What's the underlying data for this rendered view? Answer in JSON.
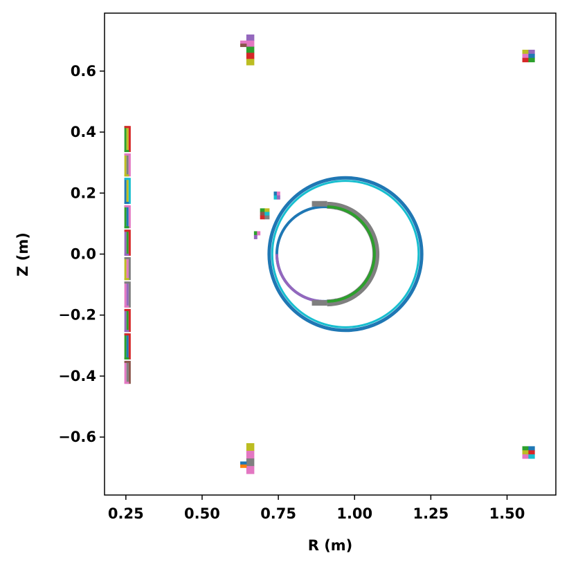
{
  "chart_data": {
    "type": "scatter",
    "title": "",
    "xlabel": "R (m)",
    "ylabel": "Z (m)",
    "xlim": [
      0.18,
      1.66
    ],
    "ylim": [
      -0.79,
      0.79
    ],
    "xticks": [
      0.25,
      0.5,
      0.75,
      1.0,
      1.25,
      1.5
    ],
    "xtick_labels": [
      "0.25",
      "0.50",
      "0.75",
      "1.00",
      "1.25",
      "1.50"
    ],
    "yticks": [
      -0.6,
      -0.4,
      -0.2,
      0.0,
      0.2,
      0.4,
      0.6
    ],
    "ytick_labels": [
      "−0.6",
      "−0.4",
      "−0.2",
      "0.0",
      "0.2",
      "0.4",
      "0.6"
    ],
    "grid": false,
    "legend": "none",
    "palette": [
      "#1f77b4",
      "#ff7f0e",
      "#2ca02c",
      "#d62728",
      "#9467bd",
      "#8c564b",
      "#e377c2",
      "#7f7f7f",
      "#bcbd22",
      "#17becf"
    ],
    "central_solenoid": [
      {
        "z_min": 0.33,
        "z_max": 0.42,
        "colors": [
          "#2ca02c",
          "#bcbd22",
          "#d62728"
        ]
      },
      {
        "z_min": 0.25,
        "z_max": 0.33,
        "colors": [
          "#bcbd22",
          "#7f7f7f",
          "#e377c2"
        ]
      },
      {
        "z_min": 0.16,
        "z_max": 0.25,
        "colors": [
          "#1f77b4",
          "#bcbd22",
          "#17becf"
        ]
      },
      {
        "z_min": 0.08,
        "z_max": 0.16,
        "colors": [
          "#2ca02c",
          "#1f77b4",
          "#e377c2"
        ]
      },
      {
        "z_min": -0.01,
        "z_max": 0.08,
        "colors": [
          "#9467bd",
          "#2ca02c",
          "#d62728"
        ]
      },
      {
        "z_min": -0.09,
        "z_max": -0.01,
        "colors": [
          "#bcbd22",
          "#e377c2",
          "#7f7f7f"
        ]
      },
      {
        "z_min": -0.18,
        "z_max": -0.09,
        "colors": [
          "#e377c2",
          "#9467bd",
          "#7f7f7f"
        ]
      },
      {
        "z_min": -0.26,
        "z_max": -0.18,
        "colors": [
          "#9467bd",
          "#2ca02c",
          "#d62728"
        ]
      },
      {
        "z_min": -0.35,
        "z_max": -0.26,
        "colors": [
          "#2ca02c",
          "#1f77b4",
          "#d62728"
        ]
      },
      {
        "z_min": -0.43,
        "z_max": -0.35,
        "colors": [
          "#e377c2",
          "#7f7f7f",
          "#8c564b"
        ]
      }
    ],
    "coils": [
      {
        "r_min": 0.645,
        "r_max": 0.67,
        "z_min": 0.62,
        "z_max": 0.72,
        "colors": [
          "#9467bd",
          "#e377c2",
          "#2ca02c",
          "#d62728",
          "#bcbd22"
        ]
      },
      {
        "r_min": 0.625,
        "r_max": 0.645,
        "z_min": 0.68,
        "z_max": 0.7,
        "colors": [
          "#e377c2",
          "#8c564b"
        ]
      },
      {
        "r_min": 0.645,
        "r_max": 0.67,
        "z_min": -0.72,
        "z_max": -0.62,
        "colors": [
          "#bcbd22",
          "#e377c2",
          "#7f7f7f",
          "#e377c2"
        ]
      },
      {
        "r_min": 0.625,
        "r_max": 0.645,
        "z_min": -0.7,
        "z_max": -0.68,
        "colors": [
          "#1f77b4",
          "#ff7f0e"
        ]
      },
      {
        "r_min": 1.55,
        "r_max": 1.59,
        "z_min": 0.63,
        "z_max": 0.67,
        "colors": [
          "#bcbd22",
          "#9467bd",
          "#e377c2",
          "#1f77b4",
          "#d62728",
          "#2ca02c"
        ]
      },
      {
        "r_min": 1.55,
        "r_max": 1.59,
        "z_min": -0.67,
        "z_max": -0.63,
        "colors": [
          "#2ca02c",
          "#1f77b4",
          "#bcbd22",
          "#d62728",
          "#e377c2",
          "#17becf"
        ]
      },
      {
        "r_min": 0.735,
        "r_max": 0.755,
        "z_min": 0.18,
        "z_max": 0.205,
        "colors": [
          "#1f77b4",
          "#e377c2",
          "#17becf",
          "#9467bd"
        ]
      },
      {
        "r_min": 0.69,
        "r_max": 0.72,
        "z_min": 0.115,
        "z_max": 0.15,
        "colors": [
          "#2ca02c",
          "#bcbd22",
          "#8c564b",
          "#17becf",
          "#d62728",
          "#7f7f7f"
        ]
      },
      {
        "r_min": 0.67,
        "r_max": 0.69,
        "z_min": 0.05,
        "z_max": 0.075,
        "colors": [
          "#2ca02c",
          "#e377c2",
          "#9467bd"
        ]
      }
    ],
    "vacuum_vessel": [
      {
        "name": "vessel-outer",
        "center": [
          0.97,
          0.0
        ],
        "radius": 0.25,
        "color": "#1f77b4",
        "width": 5
      },
      {
        "name": "vessel-inner",
        "center": [
          0.97,
          0.0
        ],
        "radius": 0.24,
        "color": "#17becf",
        "width": 3
      }
    ],
    "limiter": [
      {
        "name": "limiter-inner-arc",
        "center": [
          0.9,
          0.0
        ],
        "radius": 0.155,
        "start_deg": 75,
        "end_deg": 285,
        "color": "#1f77b4",
        "width": 4
      },
      {
        "name": "limiter-lower-arc",
        "center": [
          0.9,
          0.0
        ],
        "radius": 0.155,
        "start_deg": 180,
        "end_deg": 270,
        "color": "#9467bd",
        "width": 4
      },
      {
        "name": "plasma-boundary-outer",
        "center": [
          0.91,
          0.0
        ],
        "radius": 0.16,
        "start_deg": -90,
        "end_deg": 90,
        "color": "#7f7f7f",
        "width": 10
      },
      {
        "name": "plasma-boundary-inner",
        "center": [
          0.91,
          0.0
        ],
        "radius": 0.155,
        "start_deg": -90,
        "end_deg": 90,
        "color": "#2ca02c",
        "width": 4
      }
    ],
    "limiter_segments": [
      {
        "name": "limiter-top-segment",
        "r": [
          0.86,
          0.91
        ],
        "z": [
          0.165,
          0.165
        ],
        "color": "#7f7f7f",
        "width": 8
      },
      {
        "name": "limiter-bottom-segment",
        "r": [
          0.86,
          0.91
        ],
        "z": [
          -0.16,
          -0.16
        ],
        "color": "#7f7f7f",
        "width": 8
      }
    ]
  }
}
